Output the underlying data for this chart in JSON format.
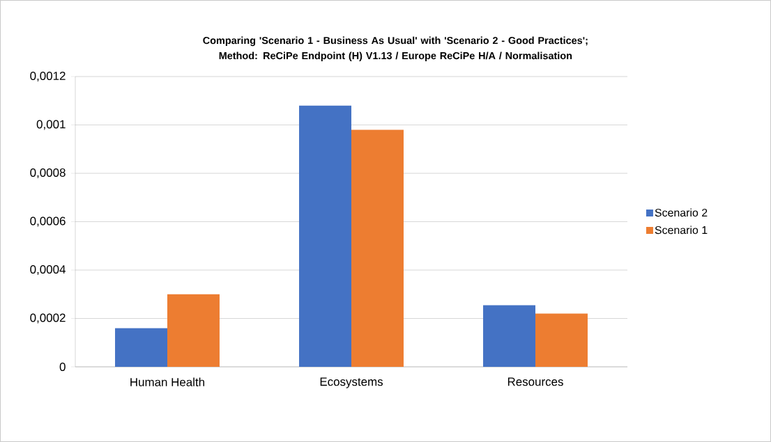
{
  "chart_data": {
    "type": "bar",
    "title": "Comparing 'Scenario 1 - Business As Usual' with 'Scenario 2 - Good Practices'; Method: ReCiPe Endpoint (H) V1.13 / Europe ReCiPe H/A / Normalisation",
    "categories": [
      "Human Health",
      "Ecosystems",
      "Resources"
    ],
    "series": [
      {
        "name": "Scenario 2",
        "color": "#4472c4",
        "values": [
          0.00016,
          0.00108,
          0.000255
        ]
      },
      {
        "name": "Scenario 1",
        "color": "#ed7d31",
        "values": [
          0.0003,
          0.00098,
          0.00022
        ]
      }
    ],
    "ylim": [
      0,
      0.0012
    ],
    "yticks": [
      0,
      {
        "value": 0.0002,
        "label": "0,0002"
      },
      {
        "value": 0.0004,
        "label": "0,0004"
      },
      {
        "value": 0.0006,
        "label": "0,0006"
      },
      {
        "value": 0.0008,
        "label": "0,0008"
      },
      {
        "value": 0.001,
        "label": "0,001"
      },
      {
        "value": 0.0012,
        "label": "0,0012"
      }
    ],
    "grid": "y",
    "legend": "right"
  }
}
